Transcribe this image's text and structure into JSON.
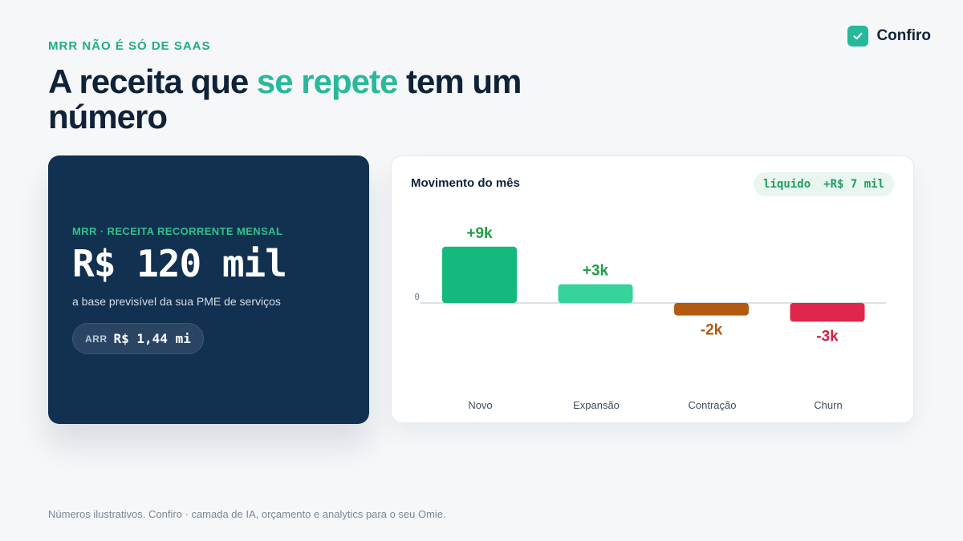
{
  "header": {
    "eyebrow": "MRR NÃO É SÓ DE SAAS",
    "headline_pre": "A receita que ",
    "headline_accent": "se repete",
    "headline_post": " tem um número"
  },
  "brand": {
    "name": "Confiro",
    "icon": "check-icon"
  },
  "mrr_card": {
    "label": "MRR · RECEITA RECORRENTE MENSAL",
    "value": "R$ 120 mil",
    "subtitle": "a base previsível da sua PME de serviços",
    "arr_key": "ARR",
    "arr_value": "R$ 1,44 mi"
  },
  "chart_card": {
    "title": "Movimento do mês",
    "net_key": "líquido",
    "net_value": "+R$ 7 mil"
  },
  "chart_data": {
    "type": "bar",
    "categories": [
      "Novo",
      "Expansão",
      "Contração",
      "Churn"
    ],
    "values": [
      9,
      3,
      -2,
      -3
    ],
    "data_labels": [
      "+9k",
      "+3k",
      "-2k",
      "-3k"
    ],
    "zero_label": "0",
    "colors": [
      "#15b97e",
      "#36d39a",
      "#b35a10",
      "#e0264b"
    ],
    "label_colors": [
      "#1f9d47",
      "#1f9d47",
      "#b35a10",
      "#d0223f"
    ],
    "grid": false
  },
  "footer": {
    "text": "Números ilustrativos. Confiro · camada de IA, orçamento e analytics para o seu Omie."
  },
  "colors": {
    "background": "#f5f7f8",
    "navy": "#12304f",
    "accent": "#2ab89a",
    "brand": "#25b89b"
  }
}
